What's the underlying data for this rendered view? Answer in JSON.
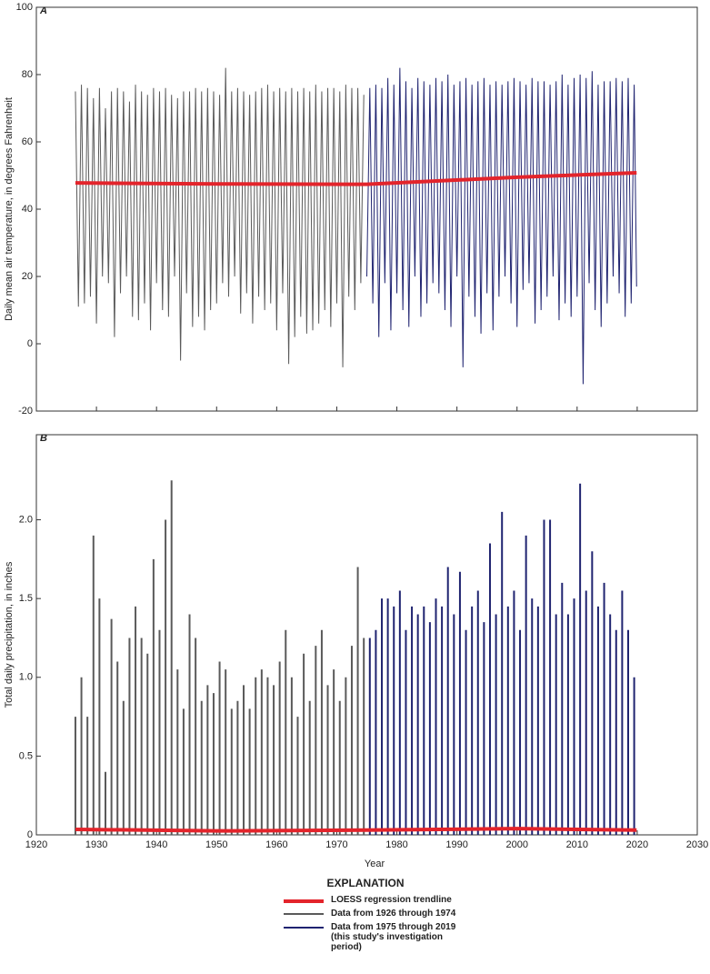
{
  "chart_data": [
    {
      "type": "line",
      "panel_label": "A",
      "ylabel": "Daily mean air temperature, in degrees Fahrenheit",
      "xlim": [
        1920,
        2030
      ],
      "ylim": [
        -20,
        100
      ],
      "yticks": [
        -20,
        0,
        20,
        40,
        60,
        80,
        100
      ],
      "series": [
        {
          "name": "Data from 1926 through 1974",
          "color": "#5a5a5a",
          "x": [
            1926.5,
            1927,
            1927.5,
            1928,
            1928.5,
            1929,
            1929.5,
            1930,
            1930.5,
            1931,
            1931.5,
            1932,
            1932.5,
            1933,
            1933.5,
            1934,
            1934.5,
            1935,
            1935.5,
            1936,
            1936.5,
            1937,
            1937.5,
            1938,
            1938.5,
            1939,
            1939.5,
            1940,
            1940.5,
            1941,
            1941.5,
            1942,
            1942.5,
            1943,
            1943.5,
            1944,
            1944.5,
            1945,
            1945.5,
            1946,
            1946.5,
            1947,
            1947.5,
            1948,
            1948.5,
            1949,
            1949.5,
            1950,
            1950.5,
            1951,
            1951.5,
            1952,
            1952.5,
            1953,
            1953.5,
            1954,
            1954.5,
            1955,
            1955.5,
            1956,
            1956.5,
            1957,
            1957.5,
            1958,
            1958.5,
            1959,
            1959.5,
            1960,
            1960.5,
            1961,
            1961.5,
            1962,
            1962.5,
            1963,
            1963.5,
            1964,
            1964.5,
            1965,
            1965.5,
            1966,
            1966.5,
            1967,
            1967.5,
            1968,
            1968.5,
            1969,
            1969.5,
            1970,
            1970.5,
            1971,
            1971.5,
            1972,
            1972.5,
            1973,
            1973.5,
            1974,
            1974.5
          ],
          "values": [
            75,
            11,
            77,
            12,
            76,
            14,
            73,
            6,
            76,
            20,
            70,
            18,
            75,
            2,
            76,
            15,
            75,
            20,
            72,
            8,
            77,
            7,
            75,
            12,
            74,
            4,
            76,
            18,
            75,
            10,
            76,
            8,
            74,
            20,
            73,
            -5,
            75,
            15,
            75,
            5,
            76,
            8,
            75,
            4,
            76,
            10,
            75,
            12,
            74,
            18,
            82,
            14,
            75,
            20,
            76,
            9,
            75,
            15,
            74,
            6,
            75,
            14,
            76,
            10,
            77,
            12,
            75,
            4,
            76,
            15,
            75,
            -6,
            76,
            2,
            75,
            8,
            76,
            3,
            75,
            4,
            77,
            6,
            75,
            10,
            76,
            5,
            76,
            12,
            75,
            -7,
            77,
            14,
            76,
            10,
            76,
            18,
            74
          ]
        },
        {
          "name": "Data from 1975 through 2019 (this study's investigation period)",
          "color": "#1f2370",
          "x": [
            1975,
            1975.5,
            1976,
            1976.5,
            1977,
            1977.5,
            1978,
            1978.5,
            1979,
            1979.5,
            1980,
            1980.5,
            1981,
            1981.5,
            1982,
            1982.5,
            1983,
            1983.5,
            1984,
            1984.5,
            1985,
            1985.5,
            1986,
            1986.5,
            1987,
            1987.5,
            1988,
            1988.5,
            1989,
            1989.5,
            1990,
            1990.5,
            1991,
            1991.5,
            1992,
            1992.5,
            1993,
            1993.5,
            1994,
            1994.5,
            1995,
            1995.5,
            1996,
            1996.5,
            1997,
            1997.5,
            1998,
            1998.5,
            1999,
            1999.5,
            2000,
            2000.5,
            2001,
            2001.5,
            2002,
            2002.5,
            2003,
            2003.5,
            2004,
            2004.5,
            2005,
            2005.5,
            2006,
            2006.5,
            2007,
            2007.5,
            2008,
            2008.5,
            2009,
            2009.5,
            2010,
            2010.5,
            2011,
            2011.5,
            2012,
            2012.5,
            2013,
            2013.5,
            2014,
            2014.5,
            2015,
            2015.5,
            2016,
            2016.5,
            2017,
            2017.5,
            2018,
            2018.5,
            2019,
            2019.5,
            2019.9
          ],
          "values": [
            20,
            76,
            12,
            77,
            2,
            76,
            18,
            79,
            4,
            77,
            15,
            82,
            10,
            78,
            5,
            76,
            20,
            79,
            8,
            78,
            12,
            77,
            18,
            79,
            15,
            78,
            10,
            80,
            5,
            77,
            20,
            78,
            -7,
            79,
            14,
            77,
            8,
            78,
            3,
            79,
            15,
            77,
            4,
            78,
            14,
            77,
            20,
            78,
            12,
            79,
            5,
            78,
            16,
            77,
            18,
            79,
            6,
            78,
            10,
            78,
            14,
            77,
            20,
            78,
            7,
            80,
            12,
            77,
            8,
            79,
            14,
            80,
            -12,
            79,
            18,
            81,
            10,
            77,
            5,
            78,
            12,
            78,
            20,
            79,
            15,
            78,
            8,
            79,
            12,
            77,
            17
          ]
        },
        {
          "name": "LOESS regression trendline",
          "color": "#e3242b",
          "x": [
            1926.5,
            1950,
            1975,
            2000,
            2019.9
          ],
          "values": [
            47.8,
            47.5,
            47.4,
            49.5,
            50.8
          ]
        }
      ]
    },
    {
      "type": "bar",
      "panel_label": "B",
      "xlabel": "Year",
      "ylabel": "Total daily precipitation, in inches",
      "xlim": [
        1920,
        2030
      ],
      "xticks": [
        1920,
        1930,
        1940,
        1950,
        1960,
        1970,
        1980,
        1990,
        2000,
        2010,
        2020,
        2030
      ],
      "ylim": [
        0,
        2.54
      ],
      "yticks": [
        0,
        0.5,
        {
          "value": 1,
          "label": "1.0"
        },
        1.5,
        {
          "value": 2,
          "label": "2.0"
        }
      ],
      "series": [
        {
          "color": "#5a5a5a",
          "x": [
            1926.5,
            1927.5,
            1928.5,
            1929.5,
            1930.5,
            1931.5,
            1932.5,
            1933.5,
            1934.5,
            1935.5,
            1936.5,
            1937.5,
            1938.5,
            1939.5,
            1940.5,
            1941.5,
            1942.5,
            1943.5,
            1944.5,
            1945.5,
            1946.5,
            1947.5,
            1948.5,
            1949.5,
            1950.5,
            1951.5,
            1952.5,
            1953.5,
            1954.5,
            1955.5,
            1956.5,
            1957.5,
            1958.5,
            1959.5,
            1960.5,
            1961.5,
            1962.5,
            1963.5,
            1964.5,
            1965.5,
            1966.5,
            1967.5,
            1968.5,
            1969.5,
            1970.5,
            1971.5,
            1972.5,
            1973.5,
            1974.5
          ],
          "values": [
            0.75,
            1.0,
            0.75,
            1.9,
            1.5,
            0.4,
            1.37,
            1.1,
            0.85,
            1.25,
            1.45,
            1.25,
            1.15,
            1.75,
            1.3,
            2.0,
            2.25,
            1.05,
            0.8,
            1.4,
            1.25,
            0.85,
            0.95,
            0.9,
            1.1,
            1.05,
            0.8,
            0.85,
            0.95,
            0.8,
            1.0,
            1.05,
            1.0,
            0.95,
            1.1,
            1.3,
            1.0,
            0.75,
            1.15,
            0.85,
            1.2,
            1.3,
            0.95,
            1.05,
            0.85,
            1.0,
            1.2,
            1.7,
            1.25
          ]
        },
        {
          "color": "#1f2370",
          "x": [
            1975.5,
            1976.5,
            1977.5,
            1978.5,
            1979.5,
            1980.5,
            1981.5,
            1982.5,
            1983.5,
            1984.5,
            1985.5,
            1986.5,
            1987.5,
            1988.5,
            1989.5,
            1990.5,
            1991.5,
            1992.5,
            1993.5,
            1994.5,
            1995.5,
            1996.5,
            1997.5,
            1998.5,
            1999.5,
            2000.5,
            2001.5,
            2002.5,
            2003.5,
            2004.5,
            2005.5,
            2006.5,
            2007.5,
            2008.5,
            2009.5,
            2010.5,
            2011.5,
            2012.5,
            2013.5,
            2014.5,
            2015.5,
            2016.5,
            2017.5,
            2018.5,
            2019.5
          ],
          "values": [
            1.25,
            1.3,
            1.5,
            1.5,
            1.45,
            1.55,
            1.3,
            1.45,
            1.4,
            1.45,
            1.35,
            1.5,
            1.45,
            1.7,
            1.4,
            1.67,
            1.3,
            1.45,
            1.55,
            1.35,
            1.85,
            1.4,
            2.05,
            1.45,
            1.55,
            1.3,
            1.9,
            1.5,
            1.45,
            2.0,
            2.0,
            1.4,
            1.6,
            1.4,
            1.5,
            2.23,
            1.55,
            1.8,
            1.45,
            1.6,
            1.4,
            1.3,
            1.55,
            1.3,
            1.0
          ]
        },
        {
          "type": "line",
          "color": "#e3242b",
          "x": [
            1926.5,
            1950,
            1975,
            2000,
            2019.9
          ],
          "values": [
            0.035,
            0.025,
            0.03,
            0.04,
            0.03
          ]
        }
      ]
    }
  ],
  "legend_title": "EXPLANATION"
}
